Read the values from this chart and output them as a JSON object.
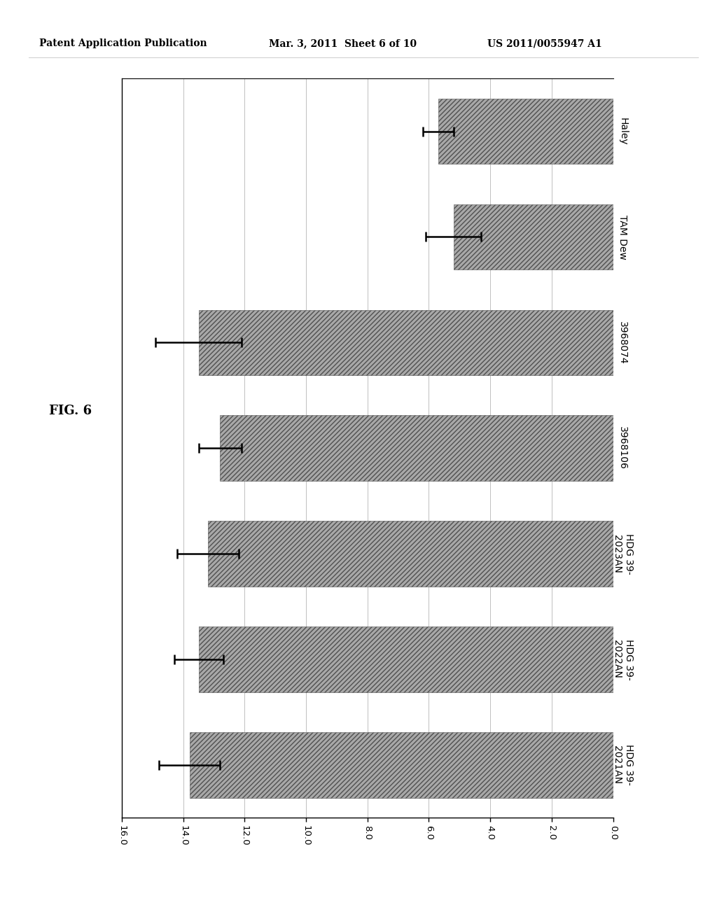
{
  "categories": [
    "HDG 39-\n2021AN",
    "HDG 39-\n2022AN",
    "HDG 39-\n2023AN",
    "3968106",
    "3968074",
    "TAM Dew",
    "Haley"
  ],
  "values": [
    13.8,
    13.5,
    13.2,
    12.8,
    13.5,
    5.2,
    5.7
  ],
  "errors": [
    1.0,
    0.8,
    1.0,
    0.7,
    1.4,
    0.9,
    0.5
  ],
  "xlim_min": 0.0,
  "xlim_max": 16.0,
  "xticks": [
    0.0,
    2.0,
    4.0,
    6.0,
    8.0,
    10.0,
    12.0,
    14.0,
    16.0
  ],
  "bar_color": "#a8a8a8",
  "bar_height": 0.62,
  "background_color": "#ffffff",
  "fig_label": "FIG. 6",
  "header_left": "Patent Application Publication",
  "header_mid": "Mar. 3, 2011  Sheet 6 of 10",
  "header_right": "US 2011/0055947 A1",
  "label_fontsize": 10,
  "tick_fontsize": 9.5,
  "header_fontsize": 10,
  "fig_label_fontsize": 13
}
